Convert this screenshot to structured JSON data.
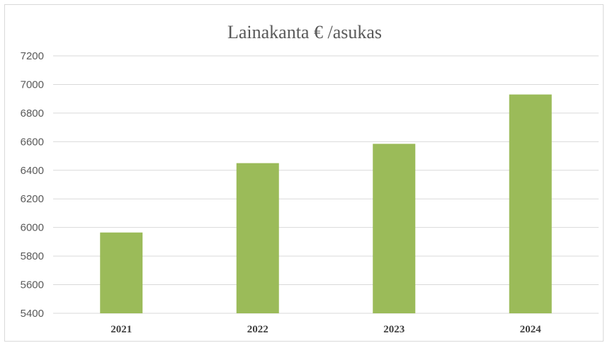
{
  "chart_data": {
    "type": "bar",
    "title": "Lainakanta € /asukas",
    "categories": [
      "2021",
      "2022",
      "2023",
      "2024"
    ],
    "values": [
      5965,
      6450,
      6585,
      6930
    ],
    "ylim": [
      5400,
      7200
    ],
    "yticks": [
      5400,
      5600,
      5800,
      6000,
      6200,
      6400,
      6600,
      6800,
      7000,
      7200
    ],
    "grid": true,
    "legend": "none",
    "bar_color": "#9bbb59"
  }
}
